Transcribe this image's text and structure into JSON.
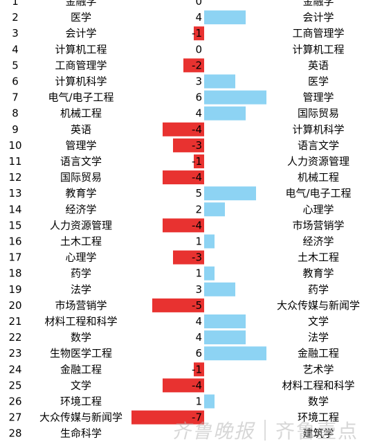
{
  "chart_data": {
    "type": "bar",
    "orientation": "horizontal",
    "ranks": [
      1,
      2,
      3,
      4,
      5,
      6,
      7,
      8,
      9,
      10,
      11,
      12,
      13,
      14,
      15,
      16,
      17,
      18,
      19,
      20,
      21,
      22,
      23,
      24,
      25,
      26,
      27,
      28
    ],
    "categories": [
      "金融学",
      "医学",
      "会计学",
      "计算机工程",
      "工商管理学",
      "计算机科学",
      "电气/电子工程",
      "机械工程",
      "英语",
      "管理学",
      "语言文学",
      "国际贸易",
      "教育学",
      "经济学",
      "人力资源管理",
      "土木工程",
      "心理学",
      "药学",
      "法学",
      "市场营销学",
      "材料工程和科学",
      "数学",
      "生物医学工程",
      "金融工程",
      "文学",
      "环境工程",
      "大众传媒与新闻学",
      "生命科学"
    ],
    "values": [
      0,
      4,
      -1,
      0,
      -2,
      3,
      6,
      4,
      -4,
      -3,
      -1,
      -4,
      5,
      2,
      -4,
      1,
      -3,
      1,
      3,
      -5,
      4,
      4,
      6,
      -1,
      -4,
      1,
      -7,
      null
    ],
    "right_labels": [
      "金融学",
      "会计学",
      "工商管理学",
      "计算机工程",
      "英语",
      "医学",
      "管理学",
      "国际贸易",
      "计算机科学",
      "语言文学",
      "人力资源管理",
      "机械工程",
      "电气/电子工程",
      "心理学",
      "市场营销学",
      "经济学",
      "土木工程",
      "教育学",
      "药学",
      "大众传媒与新闻学",
      "文学",
      "法学",
      "金融工程",
      "艺术学",
      "材料工程和科学",
      "数学",
      "环境工程",
      "建筑学"
    ],
    "colors": {
      "positive": "#8dd3f3",
      "negative": "#e83230"
    },
    "value_scale_min": -7,
    "value_scale_max": 6
  },
  "watermark": {
    "text1": "齐鲁晚报",
    "text2": "齐鲁壹点"
  }
}
